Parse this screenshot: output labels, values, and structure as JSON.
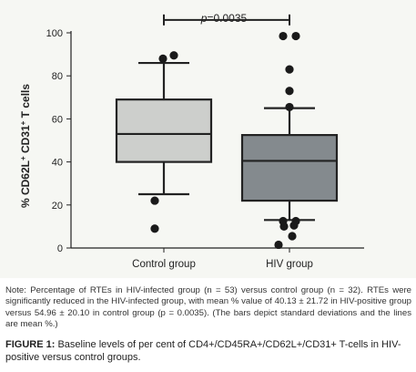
{
  "chart_data": {
    "type": "box",
    "ylabel_parts": {
      "pre": "% CD62L",
      "sup1": "+",
      "mid": " CD31",
      "sup2": "+",
      "post": " T cells"
    },
    "ylim": [
      0,
      100
    ],
    "yticks": [
      0,
      20,
      40,
      60,
      80,
      100
    ],
    "yticks_text": [
      "0",
      "20",
      "40",
      "60",
      "80",
      "100"
    ],
    "categories": [
      "Control group",
      "HIV group"
    ],
    "boxes": [
      {
        "whisker_low": 25,
        "q1": 40,
        "median": 53,
        "q3": 69,
        "whisker_high": 86,
        "outliers": [
          88,
          89.5,
          22,
          9
        ],
        "fill": "#cdcfcc"
      },
      {
        "whisker_low": 13,
        "q1": 22,
        "median": 40.5,
        "q3": 52.5,
        "whisker_high": 65,
        "outliers": [
          98.5,
          98.5,
          83,
          73,
          65.5,
          12.5,
          12.5,
          10.5,
          10,
          5.5,
          1.5
        ],
        "fill": "#848a8e"
      }
    ],
    "significance": {
      "label_italic": "p",
      "label_rest": "=0.0035",
      "y": 106
    },
    "grid": false
  },
  "note": "Note: Percentage of RTEs in HIV-infected group (n = 53) versus control group (n = 32). RTEs were significantly reduced in the HIV-infected group, with mean % value of 40.13 ± 21.72 in HIV-positive group versus 54.96 ± 20.10 in control group (p = 0.0035). (The bars depict standard deviations and the lines are mean %.)",
  "caption": {
    "label": "FIGURE 1:",
    "text": " Baseline levels of per cent of CD4+/CD45RA+/CD62L+/CD31+ T-cells in HIV-positive versus control groups."
  }
}
